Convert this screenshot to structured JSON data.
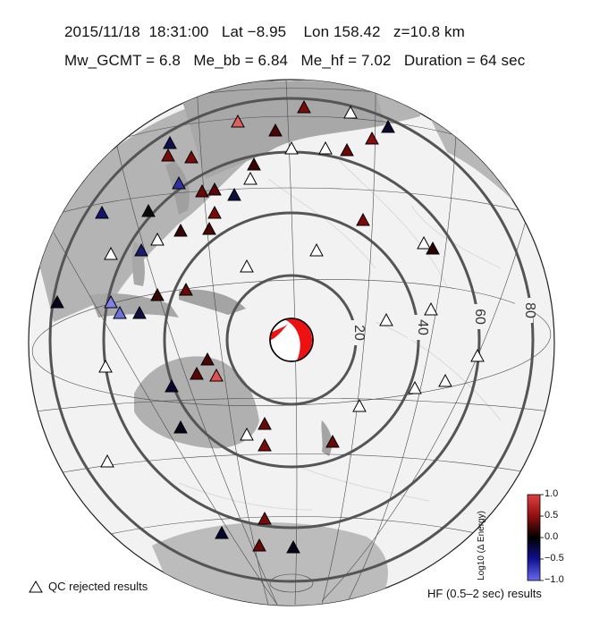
{
  "header": {
    "line1": "2015/11/18  18:31:00   Lat −8.95    Lon 158.42   z=10.8 km",
    "line2": "Mw_GCMT = 6.8   Me_bb = 6.84   Me_hf = 7.02   Duration = 64 sec"
  },
  "map": {
    "distance_rings": [
      {
        "label": "20"
      },
      {
        "label": "40"
      },
      {
        "label": "60"
      },
      {
        "label": "80"
      }
    ]
  },
  "legend": {
    "qc_label": "QC rejected results",
    "hf_label": "HF (0.5–2 sec) results"
  },
  "colorbar": {
    "title": "Log10 (Δ Energy)",
    "ticks": [
      "1.0",
      "0.5",
      "0.0",
      "−0.5",
      "−1.0"
    ],
    "colors": {
      "high": "#d01818",
      "mid": "#000000",
      "low": "#4040e0"
    }
  }
}
